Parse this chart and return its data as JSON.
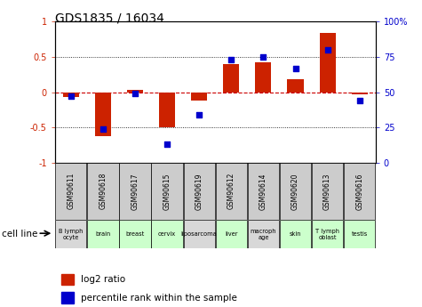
{
  "title": "GDS1835 / 16034",
  "samples": [
    "GSM90611",
    "GSM90618",
    "GSM90617",
    "GSM90615",
    "GSM90619",
    "GSM90612",
    "GSM90614",
    "GSM90620",
    "GSM90613",
    "GSM90616"
  ],
  "cell_line_texts": [
    "B lymph\nocyte",
    "brain",
    "breast",
    "cervix",
    "liposarcoma",
    "liver",
    "macroph\nage",
    "skin",
    "T lymph\noblast",
    "testis"
  ],
  "cell_line_colors": [
    "#d8d8d8",
    "#ccffcc",
    "#ccffcc",
    "#ccffcc",
    "#d8d8d8",
    "#ccffcc",
    "#d8d8d8",
    "#ccffcc",
    "#ccffcc",
    "#ccffcc"
  ],
  "log2_ratio": [
    -0.07,
    -0.62,
    0.03,
    -0.5,
    -0.12,
    0.4,
    0.42,
    0.18,
    0.84,
    -0.03
  ],
  "percentile_rank": [
    47,
    24,
    49,
    13,
    34,
    73,
    75,
    67,
    80,
    44
  ],
  "ylim": [
    -1,
    1
  ],
  "right_ylim": [
    0,
    100
  ],
  "bar_color": "#cc2200",
  "dot_color": "#0000cc",
  "zero_line_color": "#cc0000",
  "grid_color": "#000000",
  "sample_box_color": "#cccccc",
  "bg_color": "#ffffff"
}
